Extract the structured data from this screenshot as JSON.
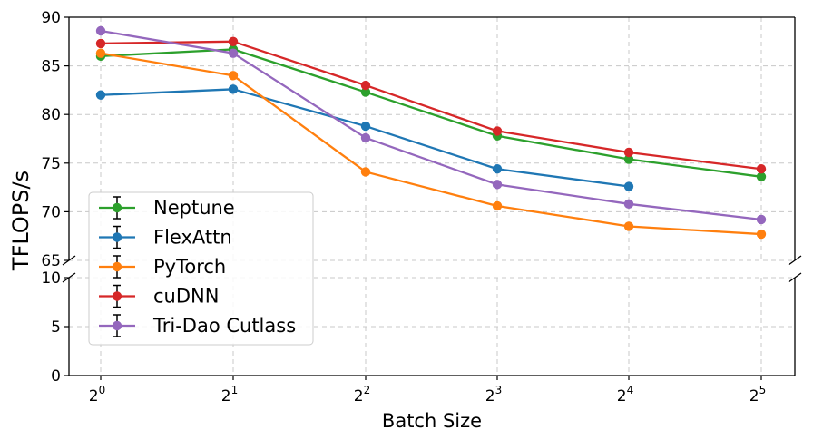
{
  "chart_data": {
    "type": "line",
    "title": "",
    "xlabel": "Batch Size",
    "ylabel": "TFLOPS/s",
    "x": [
      1,
      2,
      4,
      8,
      16,
      32
    ],
    "xtick_labels": [
      {
        "base": "2",
        "exp": "0"
      },
      {
        "base": "2",
        "exp": "1"
      },
      {
        "base": "2",
        "exp": "2"
      },
      {
        "base": "2",
        "exp": "3"
      },
      {
        "base": "2",
        "exp": "4"
      },
      {
        "base": "2",
        "exp": "5"
      }
    ],
    "ylim_upper": [
      65,
      90
    ],
    "ylim_lower": [
      0,
      10
    ],
    "yticks_upper": [
      "65",
      "70",
      "75",
      "80",
      "85",
      "90"
    ],
    "yticks_lower": [
      "0",
      "5",
      "10"
    ],
    "broken_axis": true,
    "grid": true,
    "legend_position": "lower-left",
    "series": [
      {
        "name": "Neptune",
        "color": "#2ca02c",
        "values": [
          86.0,
          86.7,
          82.3,
          77.8,
          75.4,
          73.6
        ]
      },
      {
        "name": "FlexAttn",
        "color": "#1f77b4",
        "values": [
          82.0,
          82.6,
          78.8,
          74.4,
          72.6,
          null
        ]
      },
      {
        "name": "PyTorch",
        "color": "#ff7f0e",
        "values": [
          86.3,
          84.0,
          74.1,
          70.6,
          68.5,
          67.7
        ]
      },
      {
        "name": "cuDNN",
        "color": "#d62728",
        "values": [
          87.3,
          87.5,
          83.0,
          78.3,
          76.1,
          74.4
        ]
      },
      {
        "name": "Tri-Dao Cutlass",
        "color": "#9467bd",
        "values": [
          88.6,
          86.3,
          77.6,
          72.8,
          70.8,
          69.2
        ]
      }
    ]
  }
}
